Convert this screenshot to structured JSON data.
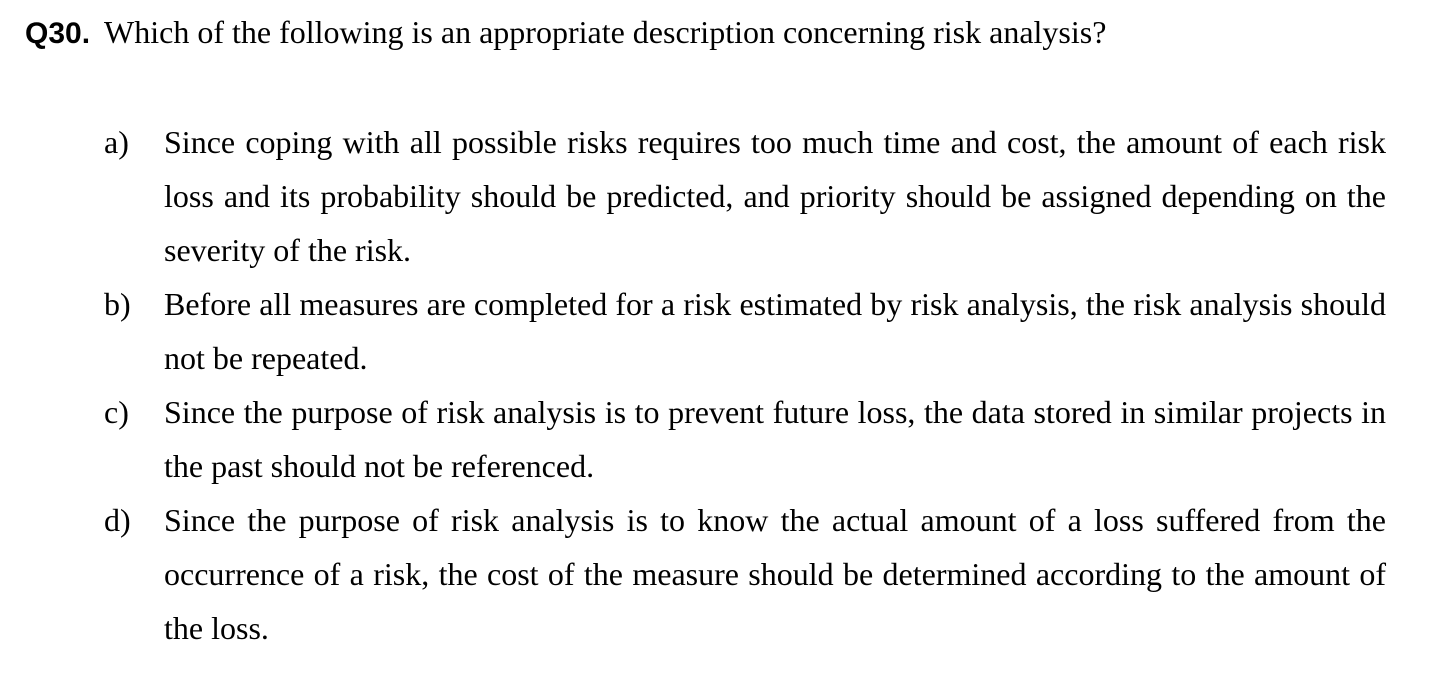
{
  "question": {
    "number": "Q30.",
    "text": "Which of the following is an appropriate description concerning risk analysis?"
  },
  "options": [
    {
      "letter": "a)",
      "text": "Since coping with all possible risks requires too much time and cost, the amount of each risk loss and its probability should be predicted, and priority should be assigned depending on the severity of the risk."
    },
    {
      "letter": "b)",
      "text": "Before all measures are completed for a risk estimated by risk analysis, the risk analysis should not be repeated."
    },
    {
      "letter": "c)",
      "text": "Since the purpose of risk analysis is to prevent future loss, the data stored in similar projects in the past should not be referenced."
    },
    {
      "letter": "d)",
      "text": "Since the purpose of risk analysis is to know the actual amount of a loss suffered from the occurrence of a risk, the cost of the measure should be determined according to the amount of the loss."
    }
  ]
}
